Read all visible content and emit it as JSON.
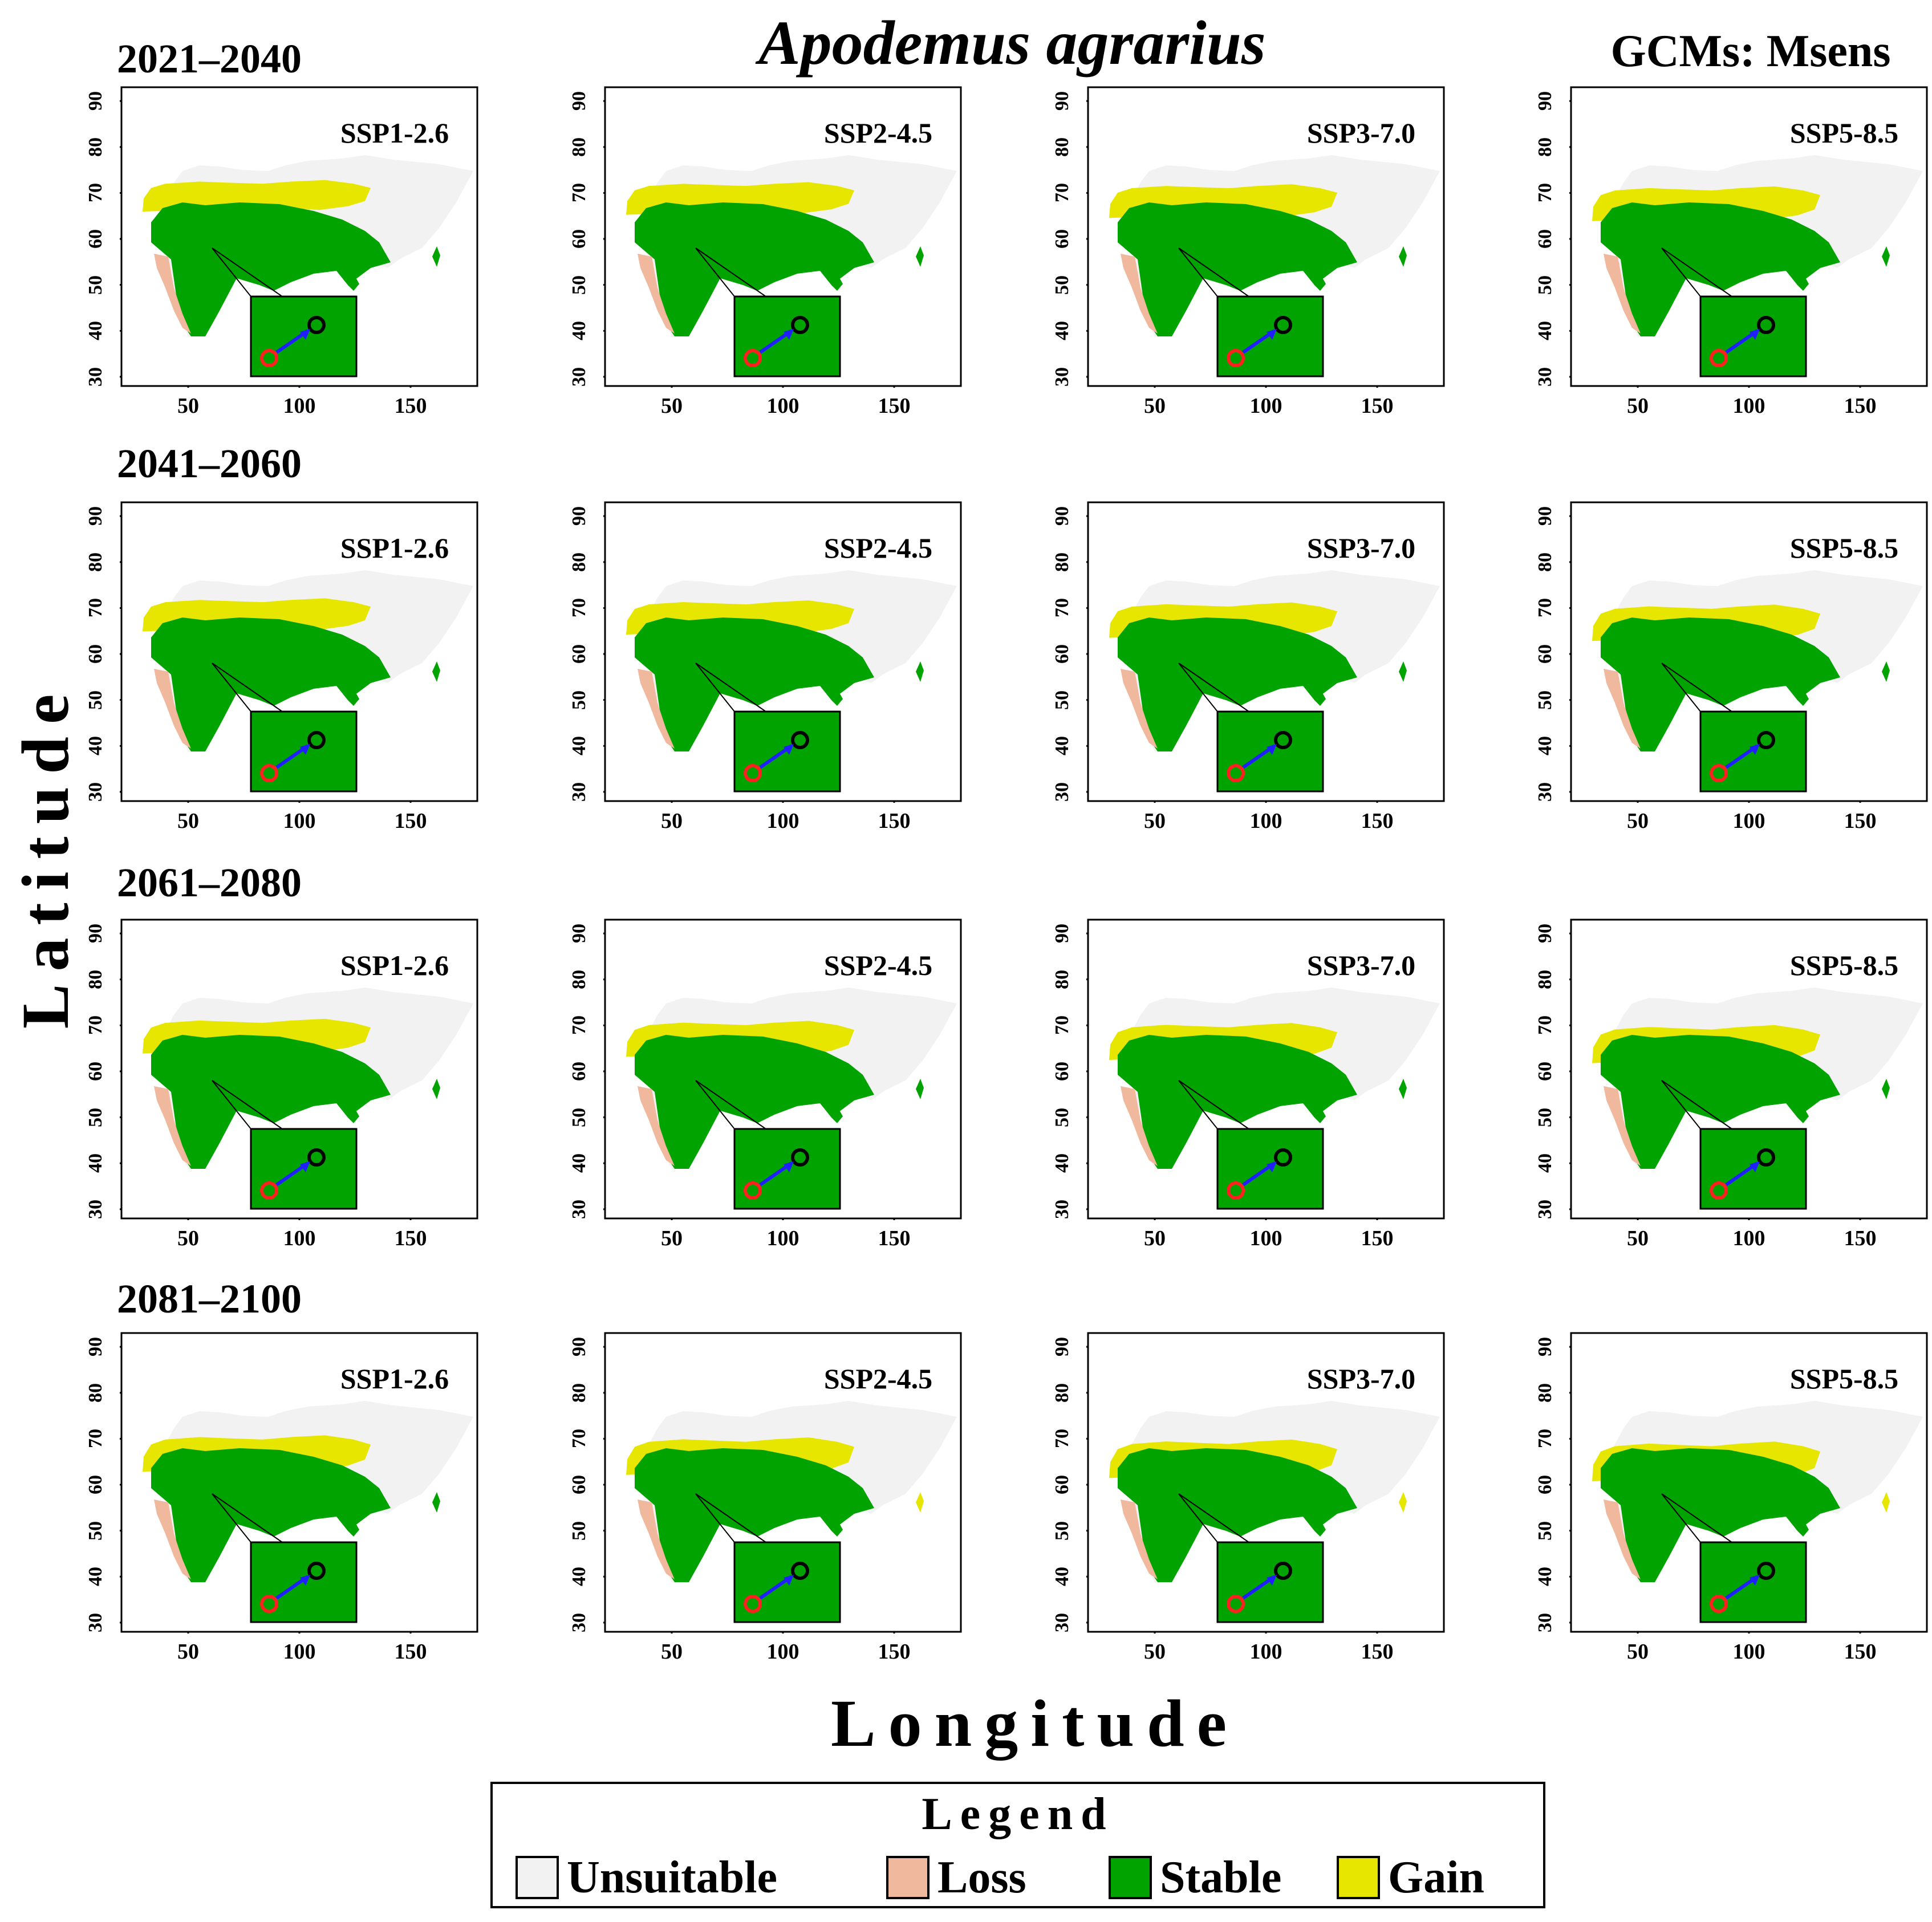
{
  "title": "Apodemus agrarius",
  "gcm_label": "GCMs: Msens",
  "y_axis_label": "Latitude",
  "x_axis_label": "Longitude",
  "periods": [
    "2021–2040",
    "2041–2060",
    "2061–2080",
    "2081–2100"
  ],
  "scenarios": [
    "SSP1-2.6",
    "SSP2-4.5",
    "SSP3-7.0",
    "SSP5-8.5"
  ],
  "legend": {
    "title": "Legend",
    "items": [
      {
        "label": "Unsuitable",
        "color": "#f2f2f2"
      },
      {
        "label": "Loss",
        "color": "#f0b89c"
      },
      {
        "label": "Stable",
        "color": "#00a300"
      },
      {
        "label": "Gain",
        "color": "#e6e600"
      }
    ]
  },
  "map_axes": {
    "x_ticks": [
      50,
      100,
      150
    ],
    "y_ticks": [
      30,
      40,
      50,
      60,
      70,
      80,
      90
    ],
    "xlim": [
      20,
      180
    ],
    "ylim": [
      28,
      93
    ]
  },
  "centroid_shift": {
    "current_centroid": {
      "lon": 63,
      "lat": 54
    },
    "future_centroid": {
      "lon": 72,
      "lat": 58
    },
    "current_marker_color": "#ff2020",
    "future_marker_color": "#000000",
    "arrow_color": "#2020ff"
  }
}
